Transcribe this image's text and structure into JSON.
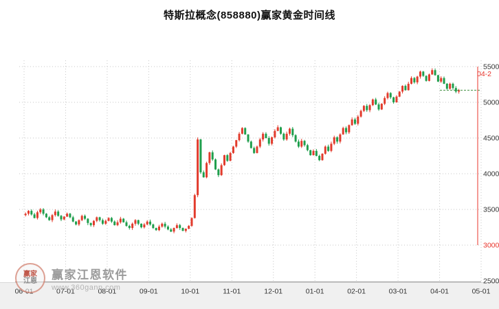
{
  "header": {
    "title": "特斯拉概念(858880)赢家黄金时间线"
  },
  "axes": {
    "y_labels": [
      5500,
      5000,
      4500,
      4000,
      3500,
      3000,
      2500
    ],
    "y_max": 5500,
    "y_min": 2500,
    "x_labels": [
      "06-01",
      "07-01",
      "08-01",
      "09-01",
      "10-01",
      "11-01",
      "12-01",
      "01-01",
      "02-01",
      "03-01",
      "04-01",
      "05-01"
    ],
    "highlighted_y_value": 3000
  },
  "crosshair": {
    "date_label": "04-2"
  },
  "last_price": 5170,
  "colors": {
    "up": "#e23b2c",
    "down": "#1f9e4c",
    "grid": "#c6c6c6",
    "axis_text": "#333333",
    "crosshair": "#e8332a",
    "last_price_line": "#3f8f3f",
    "title_text": "#111111",
    "watermark_text": "#9b9b9b"
  },
  "watermark": {
    "brand": "赢家江恩软件",
    "url": "www.360gann.com",
    "logo_line1": "赢家",
    "logo_line2": "江恩"
  },
  "chart_data": {
    "type": "candlestick",
    "title": "特斯拉概念(858880)赢家黄金时间线",
    "x_axis_months": [
      "06-01",
      "07-01",
      "08-01",
      "09-01",
      "10-01",
      "11-01",
      "12-01",
      "01-01",
      "02-01",
      "03-01",
      "04-01",
      "05-01"
    ],
    "y_range": [
      2500,
      5500
    ],
    "grid": true,
    "candles_per_month": 14,
    "first_open": 3420,
    "closes": [
      3440,
      3480,
      3430,
      3380,
      3460,
      3500,
      3440,
      3390,
      3350,
      3420,
      3470,
      3410,
      3360,
      3400,
      3440,
      3390,
      3330,
      3290,
      3350,
      3410,
      3370,
      3310,
      3280,
      3340,
      3390,
      3350,
      3300,
      3340,
      3380,
      3330,
      3280,
      3320,
      3370,
      3320,
      3270,
      3240,
      3300,
      3350,
      3300,
      3250,
      3290,
      3330,
      3290,
      3240,
      3210,
      3260,
      3300,
      3260,
      3220,
      3190,
      3240,
      3280,
      3240,
      3200,
      3230,
      3270,
      3380,
      3700,
      4480,
      4020,
      3950,
      4150,
      4300,
      4200,
      4060,
      3980,
      4120,
      4260,
      4180,
      4290,
      4380,
      4470,
      4560,
      4640,
      4550,
      4450,
      4360,
      4290,
      4380,
      4480,
      4560,
      4500,
      4420,
      4510,
      4600,
      4650,
      4560,
      4480,
      4560,
      4630,
      4540,
      4450,
      4380,
      4460,
      4400,
      4330,
      4260,
      4320,
      4250,
      4190,
      4280,
      4380,
      4320,
      4420,
      4510,
      4450,
      4550,
      4640,
      4580,
      4680,
      4760,
      4700,
      4800,
      4880,
      4950,
      4890,
      4960,
      5040,
      4970,
      4900,
      4980,
      5060,
      5130,
      5070,
      5000,
      5080,
      5150,
      5230,
      5170,
      5260,
      5340,
      5280,
      5360,
      5430,
      5370,
      5300,
      5390,
      5450,
      5380,
      5290,
      5340,
      5260,
      5190,
      5260,
      5200,
      5150,
      5170
    ],
    "last_close": 5170
  }
}
